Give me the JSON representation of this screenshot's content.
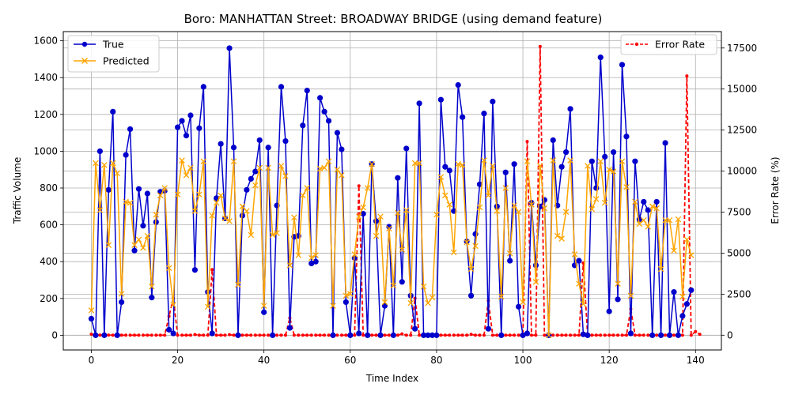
{
  "chart_data": {
    "type": "line",
    "title": "Boro: MANHATTAN Street: BROADWAY BRIDGE (using demand feature)",
    "xlabel": "Time Index",
    "ylabel": "Traffic Volume",
    "y2label": "Error Rate (%)",
    "xlim": [
      -6.5,
      146
    ],
    "ylim": [
      -80,
      1650
    ],
    "y2lim": [
      -900,
      18500
    ],
    "x_ticks": [
      0,
      20,
      40,
      60,
      80,
      100,
      120,
      140
    ],
    "y_ticks": [
      0,
      200,
      400,
      600,
      800,
      1000,
      1200,
      1400,
      1600
    ],
    "y2_ticks": [
      0,
      2500,
      5000,
      7500,
      10000,
      12500,
      15000,
      17500
    ],
    "grid": true,
    "legend_left": "top-left",
    "legend_right": "top-right",
    "colors": {
      "true": "#0000cc",
      "predicted": "#ffa500",
      "error": "#ff0000"
    },
    "series": [
      {
        "name": "True",
        "axis": "left",
        "values": [
          90,
          0,
          1000,
          0,
          790,
          1215,
          0,
          180,
          980,
          1120,
          460,
          795,
          595,
          770,
          205,
          615,
          780,
          785,
          30,
          10,
          1130,
          1165,
          1085,
          1195,
          355,
          1125,
          1350,
          235,
          10,
          745,
          1040,
          635,
          1560,
          1020,
          0,
          650,
          790,
          850,
          890,
          1060,
          125,
          1020,
          0,
          705,
          1350,
          1055,
          40,
          535,
          540,
          1140,
          1330,
          390,
          400,
          1290,
          1215,
          1165,
          0,
          1100,
          1010,
          180,
          0,
          420,
          10,
          660,
          0,
          930,
          620,
          0,
          160,
          590,
          0,
          855,
          290,
          1015,
          215,
          35,
          1260,
          0,
          0,
          0,
          0,
          1280,
          915,
          895,
          675,
          1360,
          1185,
          510,
          215,
          550,
          820,
          1205,
          35,
          1270,
          700,
          0,
          885,
          405,
          930,
          155,
          0,
          10,
          720,
          380,
          700,
          735,
          0,
          1060,
          705,
          915,
          995,
          1230,
          380,
          405,
          5,
          0,
          945,
          800,
          1510,
          970,
          130,
          995,
          195,
          1470,
          1080,
          10,
          945,
          630,
          725,
          680,
          0,
          725,
          0,
          1045,
          0,
          235,
          0,
          105,
          170,
          245
        ]
      },
      {
        "name": "Predicted",
        "axis": "left",
        "values": [
          135,
          935,
          680,
          925,
          490,
          935,
          880,
          225,
          725,
          720,
          490,
          520,
          475,
          540,
          265,
          655,
          760,
          800,
          365,
          165,
          765,
          950,
          870,
          910,
          675,
          765,
          945,
          155,
          650,
          720,
          760,
          635,
          620,
          945,
          275,
          700,
          675,
          545,
          815,
          910,
          160,
          910,
          545,
          555,
          920,
          865,
          380,
          640,
          435,
          760,
          800,
          420,
          435,
          905,
          910,
          945,
          160,
          900,
          870,
          215,
          225,
          440,
          645,
          695,
          800,
          930,
          540,
          645,
          180,
          580,
          270,
          665,
          465,
          680,
          175,
          935,
          935,
          265,
          175,
          205,
          655,
          860,
          760,
          710,
          450,
          930,
          925,
          505,
          360,
          485,
          695,
          950,
          760,
          920,
          675,
          210,
          800,
          445,
          705,
          670,
          180,
          945,
          710,
          290,
          920,
          690,
          0,
          950,
          540,
          525,
          670,
          950,
          440,
          280,
          170,
          920,
          685,
          740,
          945,
          720,
          900,
          890,
          280,
          945,
          805,
          215,
          725,
          605,
          625,
          590,
          700,
          690,
          360,
          625,
          625,
          460,
          630,
          210,
          520,
          435
        ]
      },
      {
        "name": "Error Rate",
        "axis": "right",
        "values": [
          60,
          0,
          10,
          0,
          10,
          0,
          0,
          0,
          0,
          0,
          0,
          0,
          0,
          0,
          0,
          0,
          0,
          0,
          1150,
          2250,
          0,
          0,
          0,
          0,
          40,
          0,
          0,
          0,
          4000,
          0,
          0,
          0,
          30,
          0,
          0,
          0,
          0,
          0,
          0,
          0,
          0,
          0,
          0,
          0,
          0,
          0,
          1050,
          0,
          0,
          0,
          0,
          0,
          0,
          0,
          0,
          0,
          0,
          0,
          0,
          0,
          0,
          0,
          9100,
          0,
          0,
          0,
          0,
          0,
          0,
          0,
          0,
          0,
          80,
          0,
          0,
          2250,
          0,
          0,
          0,
          0,
          0,
          0,
          0,
          0,
          0,
          0,
          0,
          0,
          50,
          0,
          0,
          0,
          2100,
          0,
          0,
          0,
          0,
          0,
          0,
          0,
          0,
          11800,
          0,
          0,
          17600,
          0,
          0,
          0,
          0,
          0,
          0,
          0,
          0,
          0,
          4400,
          0,
          0,
          0,
          0,
          0,
          0,
          0,
          0,
          0,
          0,
          1600,
          0,
          0,
          0,
          0,
          0,
          0,
          0,
          0,
          0,
          0,
          0,
          0,
          15800,
          0,
          220,
          50
        ]
      }
    ]
  }
}
